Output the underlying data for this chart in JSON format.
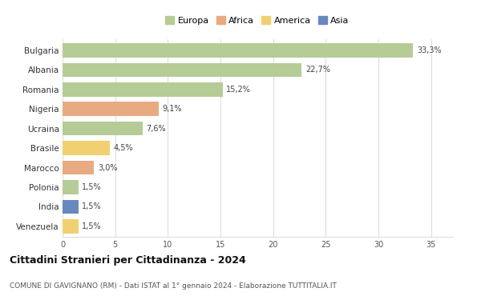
{
  "countries": [
    "Bulgaria",
    "Albania",
    "Romania",
    "Nigeria",
    "Ucraina",
    "Brasile",
    "Marocco",
    "Polonia",
    "India",
    "Venezuela"
  ],
  "values": [
    33.3,
    22.7,
    15.2,
    9.1,
    7.6,
    4.5,
    3.0,
    1.5,
    1.5,
    1.5
  ],
  "labels": [
    "33,3%",
    "22,7%",
    "15,2%",
    "9,1%",
    "7,6%",
    "4,5%",
    "3,0%",
    "1,5%",
    "1,5%",
    "1,5%"
  ],
  "continents": [
    "Europa",
    "Europa",
    "Europa",
    "Africa",
    "Europa",
    "America",
    "Africa",
    "Europa",
    "Asia",
    "America"
  ],
  "colors": {
    "Europa": "#b5cc96",
    "Africa": "#e8aa80",
    "America": "#f0d070",
    "Asia": "#6888c0"
  },
  "legend_labels": [
    "Europa",
    "Africa",
    "America",
    "Asia"
  ],
  "legend_colors": [
    "#b5cc96",
    "#e8aa80",
    "#f0d070",
    "#6888c0"
  ],
  "title": "Cittadini Stranieri per Cittadinanza - 2024",
  "subtitle": "COMUNE DI GAVIGNANO (RM) - Dati ISTAT al 1° gennaio 2024 - Elaborazione TUTTITALIA.IT",
  "xlim": [
    0,
    37
  ],
  "xticks": [
    0,
    5,
    10,
    15,
    20,
    25,
    30,
    35
  ],
  "background_color": "#ffffff",
  "bar_alpha": 1.0,
  "bar_height": 0.72
}
